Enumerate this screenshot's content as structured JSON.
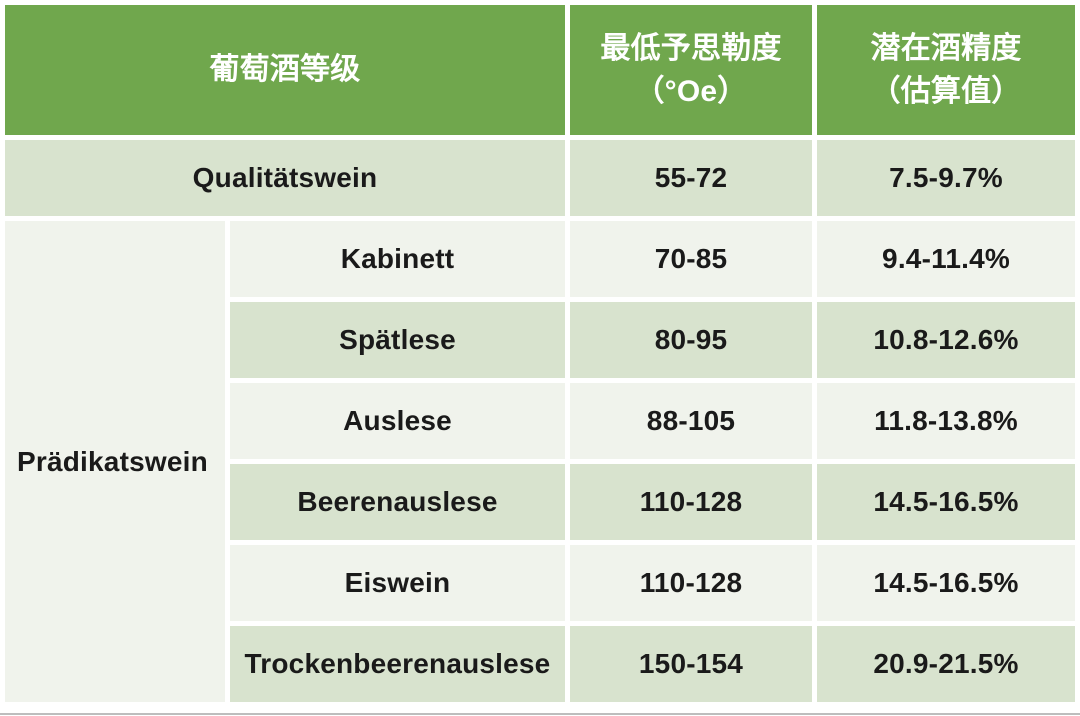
{
  "colors": {
    "header_green": "#70a74d",
    "row_pale_green": "#d8e3ce",
    "row_off_white": "#f0f3ec",
    "header_text": "#ffffff",
    "body_text": "#1a1a1a",
    "bottom_divider": "#bdbdbd"
  },
  "table": {
    "header": {
      "grade_label": "葡萄酒等级",
      "oechsle_label_line1": "最低予思勒度",
      "oechsle_label_line2": "（°Oe）",
      "alcohol_label_line1": "潜在酒精度",
      "alcohol_label_line2": "（估算值）"
    },
    "qualitatswein": {
      "name": "Qualitätswein",
      "oechsle": "55-72",
      "alcohol": "7.5-9.7%"
    },
    "pradikatswein": {
      "name": "Prädikatswein",
      "grades": [
        {
          "name": "Kabinett",
          "oechsle": "70-85",
          "alcohol": "9.4-11.4%"
        },
        {
          "name": "Spätlese",
          "oechsle": "80-95",
          "alcohol": "10.8-12.6%"
        },
        {
          "name": "Auslese",
          "oechsle": "88-105",
          "alcohol": "11.8-13.8%"
        },
        {
          "name": "Beerenauslese",
          "oechsle": "110-128",
          "alcohol": "14.5-16.5%"
        },
        {
          "name": "Eiswein",
          "oechsle": "110-128",
          "alcohol": "14.5-16.5%"
        },
        {
          "name": "Trockenbeerenauslese",
          "oechsle": "150-154",
          "alcohol": "20.9-21.5%"
        }
      ]
    }
  },
  "chart_data": {
    "type": "table",
    "title": "",
    "columns": [
      "葡萄酒等级",
      "最低予思勒度（°Oe）",
      "潜在酒精度（估算值）"
    ],
    "rows": [
      [
        "Qualitätswein",
        "",
        "55-72",
        "7.5-9.7%"
      ],
      [
        "Prädikatswein",
        "Kabinett",
        "70-85",
        "9.4-11.4%"
      ],
      [
        "Prädikatswein",
        "Spätlese",
        "80-95",
        "10.8-12.6%"
      ],
      [
        "Prädikatswein",
        "Auslese",
        "88-105",
        "11.8-13.8%"
      ],
      [
        "Prädikatswein",
        "Beerenauslese",
        "110-128",
        "14.5-16.5%"
      ],
      [
        "Prädikatswein",
        "Eiswein",
        "110-128",
        "14.5-16.5%"
      ],
      [
        "Prädikatswein",
        "Trockenbeerenauslese",
        "150-154",
        "20.9-21.5%"
      ]
    ]
  }
}
